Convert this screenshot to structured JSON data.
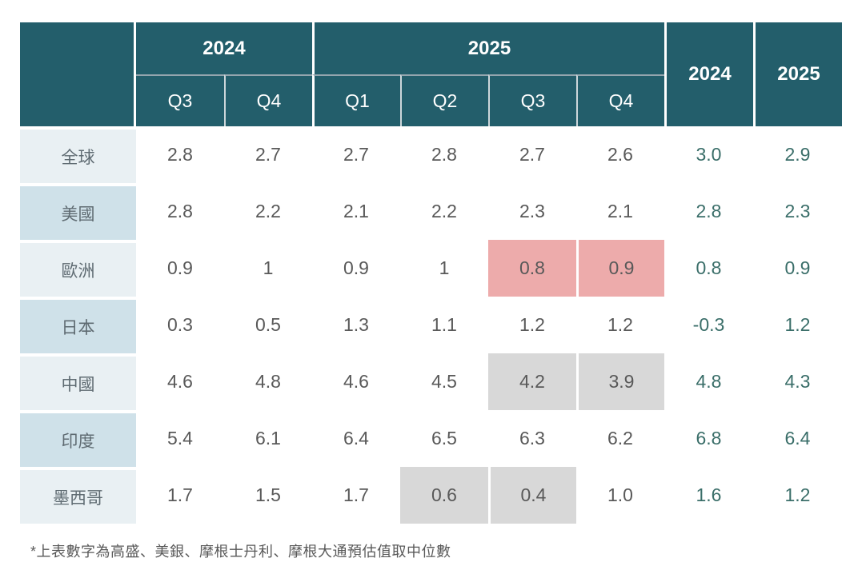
{
  "colors": {
    "header_teal": "#235e6b",
    "label_bg_light": "#e9f0f3",
    "label_bg_dark": "#cfe1e9",
    "highlight_pink": "#edabab",
    "highlight_gray": "#d8d8d8",
    "quarter_text": "#595959",
    "annual_text": "#3a6e69",
    "header_divider": "#94a5ae"
  },
  "table": {
    "header": {
      "group_2024": "2024",
      "group_2025": "2025",
      "annual_2024": "2024",
      "annual_2025": "2025",
      "quarters": [
        "Q3",
        "Q4",
        "Q1",
        "Q2",
        "Q3",
        "Q4"
      ]
    },
    "rows": [
      {
        "label": "全球",
        "quarters": [
          "2.8",
          "2.7",
          "2.7",
          "2.8",
          "2.7",
          "2.6"
        ],
        "annual": [
          "3.0",
          "2.9"
        ],
        "highlight": null
      },
      {
        "label": "美國",
        "quarters": [
          "2.8",
          "2.2",
          "2.1",
          "2.2",
          "2.3",
          "2.1"
        ],
        "annual": [
          "2.8",
          "2.3"
        ],
        "highlight": null
      },
      {
        "label": "歐洲",
        "quarters": [
          "0.9",
          "1",
          "0.9",
          "1",
          "0.8",
          "0.9"
        ],
        "annual": [
          "0.8",
          "0.9"
        ],
        "highlight": {
          "color": "pink",
          "cells": [
            4,
            5
          ]
        }
      },
      {
        "label": "日本",
        "quarters": [
          "0.3",
          "0.5",
          "1.3",
          "1.1",
          "1.2",
          "1.2"
        ],
        "annual": [
          "-0.3",
          "1.2"
        ],
        "highlight": null
      },
      {
        "label": "中國",
        "quarters": [
          "4.6",
          "4.8",
          "4.6",
          "4.5",
          "4.2",
          "3.9"
        ],
        "annual": [
          "4.8",
          "4.3"
        ],
        "highlight": {
          "color": "gray",
          "cells": [
            4,
            5
          ]
        }
      },
      {
        "label": "印度",
        "quarters": [
          "5.4",
          "6.1",
          "6.4",
          "6.5",
          "6.3",
          "6.2"
        ],
        "annual": [
          "6.8",
          "6.4"
        ],
        "highlight": null
      },
      {
        "label": "墨西哥",
        "quarters": [
          "1.7",
          "1.5",
          "1.7",
          "0.6",
          "0.4",
          "1.0"
        ],
        "annual": [
          "1.6",
          "1.2"
        ],
        "highlight": {
          "color": "gray",
          "cells": [
            3,
            4
          ]
        }
      }
    ]
  },
  "footnote": "*上表數字為高盛、美銀、摩根士丹利、摩根大通預估值取中位數",
  "chart_data": {
    "type": "table",
    "columns": [
      "2024 Q3",
      "2024 Q4",
      "2025 Q1",
      "2025 Q2",
      "2025 Q3",
      "2025 Q4",
      "2024",
      "2025"
    ],
    "column_groups": [
      {
        "label": "2024",
        "columns": [
          "Q3",
          "Q4"
        ]
      },
      {
        "label": "2025",
        "columns": [
          "Q1",
          "Q2",
          "Q3",
          "Q4"
        ]
      },
      {
        "label": "2024",
        "columns": []
      },
      {
        "label": "2025",
        "columns": []
      }
    ],
    "rows": [
      {
        "label": "全球",
        "values": [
          "2.8",
          "2.7",
          "2.7",
          "2.8",
          "2.7",
          "2.6",
          "3.0",
          "2.9"
        ]
      },
      {
        "label": "美國",
        "values": [
          "2.8",
          "2.2",
          "2.1",
          "2.2",
          "2.3",
          "2.1",
          "2.8",
          "2.3"
        ]
      },
      {
        "label": "歐洲",
        "values": [
          "0.9",
          "1",
          "0.9",
          "1",
          "0.8",
          "0.9",
          "0.8",
          "0.9"
        ]
      },
      {
        "label": "日本",
        "values": [
          "0.3",
          "0.5",
          "1.3",
          "1.1",
          "1.2",
          "1.2",
          "-0.3",
          "1.2"
        ]
      },
      {
        "label": "中國",
        "values": [
          "4.6",
          "4.8",
          "4.6",
          "4.5",
          "4.2",
          "3.9",
          "4.8",
          "4.3"
        ]
      },
      {
        "label": "印度",
        "values": [
          "5.4",
          "6.1",
          "6.4",
          "6.5",
          "6.3",
          "6.2",
          "6.8",
          "6.4"
        ]
      },
      {
        "label": "墨西哥",
        "values": [
          "1.7",
          "1.5",
          "1.7",
          "0.6",
          "0.4",
          "1.0",
          "1.6",
          "1.2"
        ]
      }
    ],
    "highlights": [
      {
        "row": "歐洲",
        "columns": [
          "2025 Q3",
          "2025 Q4"
        ],
        "color": "#edabab"
      },
      {
        "row": "中國",
        "columns": [
          "2025 Q3",
          "2025 Q4"
        ],
        "color": "#d8d8d8"
      },
      {
        "row": "墨西哥",
        "columns": [
          "2025 Q2",
          "2025 Q3"
        ],
        "color": "#d8d8d8"
      }
    ],
    "annotations": [
      "*上表數字為高盛、美銀、摩根士丹利、摩根大通預估值取中位數"
    ]
  }
}
